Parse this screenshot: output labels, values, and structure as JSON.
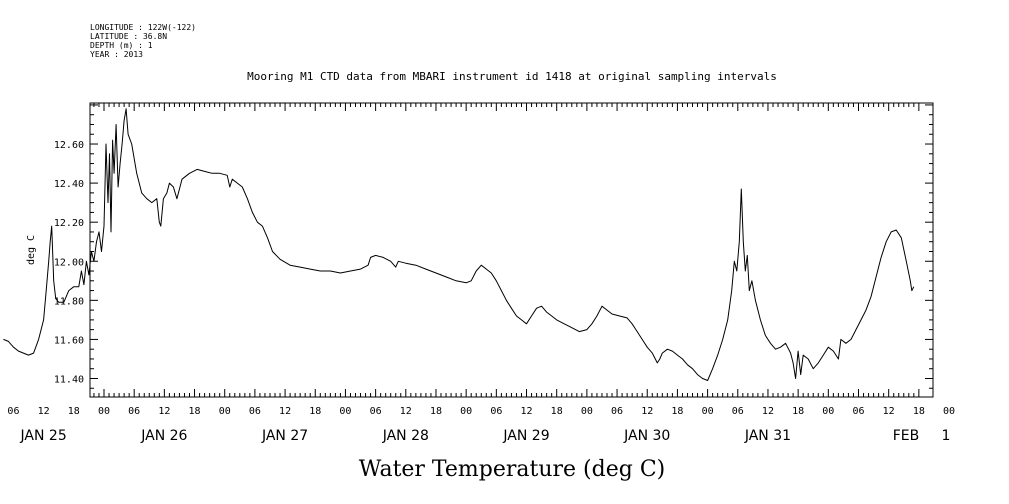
{
  "header": {
    "longitude": "LONGITUDE : 122W(-122)",
    "latitude": "LATITUDE : 36.8N",
    "depth": "DEPTH (m) : 1",
    "year": "YEAR : 2013"
  },
  "chart_data": {
    "type": "line",
    "title": "Mooring M1 CTD data from MBARI instrument id 1418 at original sampling intervals",
    "bottom_title": "Water Temperature (deg C)",
    "ylabel": "deg C",
    "xlabel": "",
    "ylim": [
      11.3,
      12.8
    ],
    "yticks": [
      "11.40",
      "11.60",
      "11.80",
      "12.00",
      "12.20",
      "12.40",
      "12.60"
    ],
    "x_unit": "hours since Jan 25 2013 00:00 (time axis)",
    "xlim": [
      -20,
      161
    ],
    "hour_ticks": [
      "06",
      "12",
      "18",
      "00",
      "06",
      "12",
      "18",
      "00",
      "06",
      "12",
      "18",
      "00",
      "06",
      "12",
      "18",
      "00",
      "06",
      "12",
      "18",
      "00",
      "06",
      "12",
      "18",
      "00",
      "06",
      "12",
      "18",
      "00",
      "06",
      "12",
      "18",
      "00"
    ],
    "day_labels": [
      "JAN 25",
      "JAN 26",
      "JAN 27",
      "JAN 28",
      "JAN 29",
      "JAN 30",
      "JAN 31",
      "FEB",
      "1"
    ],
    "grid": false,
    "series": [
      {
        "points": [
          [
            -20,
            11.6
          ],
          [
            -19,
            11.59
          ],
          [
            -18,
            11.56
          ],
          [
            -17,
            11.54
          ],
          [
            -16,
            11.53
          ],
          [
            -15,
            11.52
          ],
          [
            -14,
            11.53
          ],
          [
            -13,
            11.6
          ],
          [
            -12,
            11.7
          ],
          [
            -11.5,
            11.85
          ],
          [
            -11,
            12.0
          ],
          [
            -10.7,
            12.1
          ],
          [
            -10.4,
            12.18
          ],
          [
            -10,
            11.9
          ],
          [
            -9.6,
            11.81
          ],
          [
            -9,
            11.79
          ],
          [
            -8,
            11.79
          ],
          [
            -7,
            11.85
          ],
          [
            -6,
            11.87
          ],
          [
            -5,
            11.87
          ],
          [
            -4.5,
            11.95
          ],
          [
            -4,
            11.88
          ],
          [
            -3.5,
            12.0
          ],
          [
            -3,
            11.93
          ],
          [
            -2.5,
            12.05
          ],
          [
            -2,
            12.0
          ],
          [
            -1.5,
            12.1
          ],
          [
            -1,
            12.15
          ],
          [
            -0.5,
            12.05
          ],
          [
            0,
            12.18
          ],
          [
            0.4,
            12.6
          ],
          [
            0.8,
            12.3
          ],
          [
            1.1,
            12.55
          ],
          [
            1.4,
            12.15
          ],
          [
            1.7,
            12.62
          ],
          [
            2.0,
            12.45
          ],
          [
            2.4,
            12.7
          ],
          [
            2.8,
            12.38
          ],
          [
            3.2,
            12.5
          ],
          [
            3.6,
            12.6
          ],
          [
            4.0,
            12.72
          ],
          [
            4.4,
            12.78
          ],
          [
            4.8,
            12.65
          ],
          [
            5.5,
            12.6
          ],
          [
            6.5,
            12.45
          ],
          [
            7.5,
            12.35
          ],
          [
            8.5,
            12.32
          ],
          [
            9.5,
            12.3
          ],
          [
            10.5,
            12.32
          ],
          [
            11.0,
            12.2
          ],
          [
            11.3,
            12.18
          ],
          [
            11.8,
            12.32
          ],
          [
            12.5,
            12.35
          ],
          [
            13.0,
            12.4
          ],
          [
            13.8,
            12.38
          ],
          [
            14.5,
            12.32
          ],
          [
            15.5,
            12.42
          ],
          [
            17,
            12.45
          ],
          [
            18.5,
            12.47
          ],
          [
            20,
            12.46
          ],
          [
            21.5,
            12.45
          ],
          [
            23,
            12.45
          ],
          [
            24.5,
            12.44
          ],
          [
            25,
            12.38
          ],
          [
            25.5,
            12.42
          ],
          [
            26.5,
            12.4
          ],
          [
            27.5,
            12.38
          ],
          [
            28.5,
            12.32
          ],
          [
            29.5,
            12.25
          ],
          [
            30.5,
            12.2
          ],
          [
            31.5,
            12.18
          ],
          [
            32.5,
            12.12
          ],
          [
            33.5,
            12.05
          ],
          [
            35,
            12.01
          ],
          [
            37,
            11.98
          ],
          [
            39,
            11.97
          ],
          [
            41,
            11.96
          ],
          [
            43,
            11.95
          ],
          [
            45,
            11.95
          ],
          [
            47,
            11.94
          ],
          [
            49,
            11.95
          ],
          [
            51,
            11.96
          ],
          [
            52.5,
            11.98
          ],
          [
            53,
            12.02
          ],
          [
            54,
            12.03
          ],
          [
            55.5,
            12.02
          ],
          [
            57,
            12.0
          ],
          [
            58,
            11.97
          ],
          [
            58.5,
            12.0
          ],
          [
            60,
            11.99
          ],
          [
            62,
            11.98
          ],
          [
            64,
            11.96
          ],
          [
            66,
            11.94
          ],
          [
            68,
            11.92
          ],
          [
            70,
            11.9
          ],
          [
            72,
            11.89
          ],
          [
            73,
            11.9
          ],
          [
            74,
            11.95
          ],
          [
            75,
            11.98
          ],
          [
            76,
            11.96
          ],
          [
            77,
            11.94
          ],
          [
            78,
            11.9
          ],
          [
            79,
            11.85
          ],
          [
            80,
            11.8
          ],
          [
            81,
            11.76
          ],
          [
            82,
            11.72
          ],
          [
            83,
            11.7
          ],
          [
            84,
            11.68
          ],
          [
            85,
            11.72
          ],
          [
            86,
            11.76
          ],
          [
            87,
            11.77
          ],
          [
            88,
            11.74
          ],
          [
            89,
            11.72
          ],
          [
            90,
            11.7
          ],
          [
            91.5,
            11.68
          ],
          [
            93,
            11.66
          ],
          [
            94.5,
            11.64
          ],
          [
            96,
            11.65
          ],
          [
            97,
            11.68
          ],
          [
            98,
            11.72
          ],
          [
            99,
            11.77
          ],
          [
            100,
            11.75
          ],
          [
            101,
            11.73
          ],
          [
            102.5,
            11.72
          ],
          [
            104,
            11.71
          ],
          [
            105,
            11.68
          ],
          [
            106,
            11.64
          ],
          [
            107,
            11.6
          ],
          [
            108,
            11.56
          ],
          [
            109,
            11.53
          ],
          [
            110,
            11.48
          ],
          [
            110.5,
            11.5
          ],
          [
            111,
            11.53
          ],
          [
            112,
            11.55
          ],
          [
            113,
            11.54
          ],
          [
            114,
            11.52
          ],
          [
            115,
            11.5
          ],
          [
            116,
            11.47
          ],
          [
            117,
            11.45
          ],
          [
            118,
            11.42
          ],
          [
            119,
            11.4
          ],
          [
            120,
            11.39
          ],
          [
            121,
            11.45
          ],
          [
            122,
            11.52
          ],
          [
            123,
            11.6
          ],
          [
            124,
            11.7
          ],
          [
            124.8,
            11.85
          ],
          [
            125.3,
            12.0
          ],
          [
            125.8,
            11.95
          ],
          [
            126.3,
            12.1
          ],
          [
            126.7,
            12.37
          ],
          [
            127.1,
            12.1
          ],
          [
            127.5,
            11.95
          ],
          [
            127.9,
            12.03
          ],
          [
            128.3,
            11.85
          ],
          [
            128.8,
            11.9
          ],
          [
            129.5,
            11.8
          ],
          [
            130.5,
            11.7
          ],
          [
            131.5,
            11.62
          ],
          [
            132.5,
            11.58
          ],
          [
            133.5,
            11.55
          ],
          [
            134.5,
            11.56
          ],
          [
            135.5,
            11.58
          ],
          [
            136.5,
            11.53
          ],
          [
            137,
            11.48
          ],
          [
            137.5,
            11.4
          ],
          [
            138,
            11.54
          ],
          [
            138.5,
            11.42
          ],
          [
            139,
            11.52
          ],
          [
            140,
            11.5
          ],
          [
            141,
            11.45
          ],
          [
            142,
            11.48
          ],
          [
            143,
            11.52
          ],
          [
            144,
            11.56
          ],
          [
            145,
            11.54
          ],
          [
            146,
            11.5
          ],
          [
            146.5,
            11.6
          ],
          [
            147.5,
            11.58
          ],
          [
            148.5,
            11.6
          ],
          [
            149.5,
            11.65
          ],
          [
            150.5,
            11.7
          ],
          [
            151.5,
            11.75
          ],
          [
            152.5,
            11.82
          ],
          [
            153.5,
            11.92
          ],
          [
            154.5,
            12.02
          ],
          [
            155.5,
            12.1
          ],
          [
            156.5,
            12.15
          ],
          [
            157.5,
            12.16
          ],
          [
            158.5,
            12.12
          ],
          [
            159.5,
            12.0
          ],
          [
            160.3,
            11.9
          ],
          [
            160.6,
            11.85
          ],
          [
            161,
            11.87
          ]
        ]
      }
    ]
  }
}
